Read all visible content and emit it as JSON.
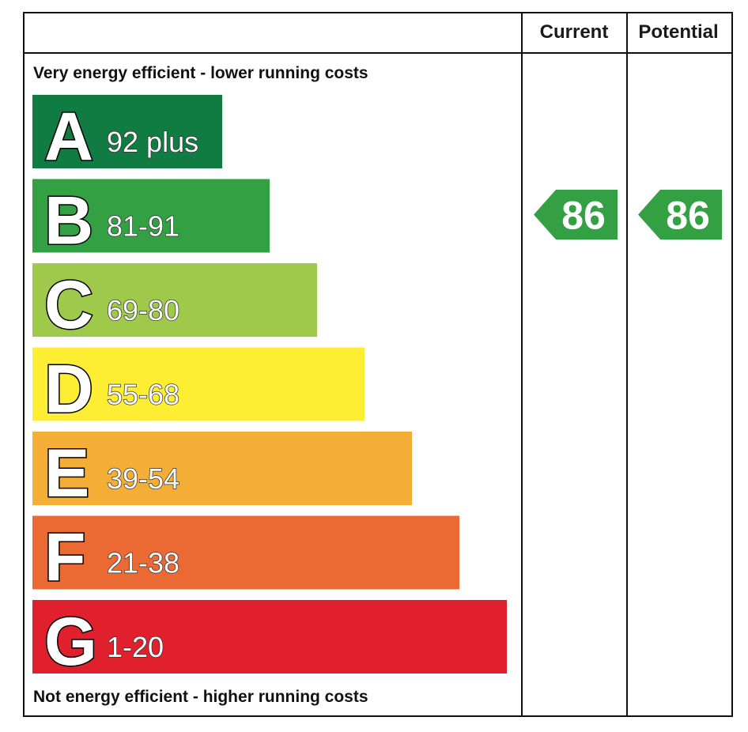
{
  "chart_data": {
    "type": "bar",
    "headers": {
      "current": "Current",
      "potential": "Potential"
    },
    "top_caption": "Very energy efficient - lower running costs",
    "bottom_caption": "Not energy efficient - higher running costs",
    "bands": [
      {
        "letter": "A",
        "range": "92 plus",
        "color": "#117c41"
      },
      {
        "letter": "B",
        "range": "81-91",
        "color": "#33a043"
      },
      {
        "letter": "C",
        "range": "69-80",
        "color": "#9fc94a"
      },
      {
        "letter": "D",
        "range": "55-68",
        "color": "#fdee33"
      },
      {
        "letter": "E",
        "range": "39-54",
        "color": "#f5ae35"
      },
      {
        "letter": "F",
        "range": "21-38",
        "color": "#eb6932"
      },
      {
        "letter": "G",
        "range": "1-20",
        "color": "#e0202d"
      }
    ],
    "current": {
      "value": 86,
      "band": "B",
      "color": "#33a043"
    },
    "potential": {
      "value": 86,
      "band": "B",
      "color": "#33a043"
    }
  }
}
